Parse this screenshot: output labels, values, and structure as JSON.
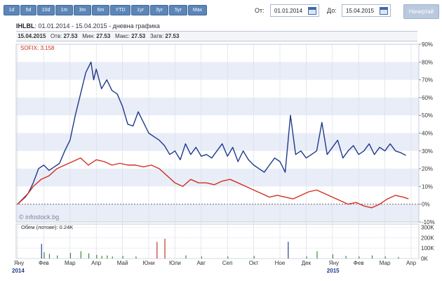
{
  "toolbar": {
    "ranges": [
      "1d",
      "5d",
      "10d",
      "1m",
      "3m",
      "6m",
      "YTD",
      "1yr",
      "3yr",
      "5yr",
      "Max"
    ],
    "from_label": "От:",
    "from_value": "01.01.2014",
    "to_label": "До:",
    "to_value": "15.04.2015",
    "draw_label": "Начертай"
  },
  "header": {
    "symbol": "IHLBL",
    "subtitle": ": 01.01.2014 - 15.04.2015 - дневна графика"
  },
  "infobar": {
    "date": "15.04.2015",
    "open_label": "Отв:",
    "open": "27.53",
    "min_label": "Мин:",
    "min": "27.53",
    "max_label": "Макс:",
    "max": "27.53",
    "close_label": "Затв:",
    "close": "27.53"
  },
  "chart_data": {
    "type": "line",
    "y_axis": {
      "min": -10,
      "max": 90,
      "step": 10,
      "unit": "%",
      "side": "right"
    },
    "y_tick_labels": [
      "90%",
      "80%",
      "70%",
      "60%",
      "50%",
      "40%",
      "30%",
      "20%",
      "10%",
      "0%",
      "-10%"
    ],
    "volume_axis": {
      "labels": [
        "300K",
        "200K",
        "100K",
        "0K"
      ],
      "values": [
        300,
        200,
        100,
        0
      ]
    },
    "volume_label": "Обем (лотове): 0.24K",
    "x_tick_labels": [
      "Яну",
      "Фев",
      "Мар",
      "Апр",
      "Май",
      "Юни",
      "Юли",
      "Авг",
      "Сеп",
      "Окт",
      "Ное",
      "Дек",
      "Яну",
      "Фев",
      "Мар",
      "Апр"
    ],
    "year_labels": [
      "2014",
      "2015"
    ],
    "legend": {
      "sofix_label": "SOFIX: 3.158"
    },
    "watermark": "© infostock.bg",
    "series": [
      {
        "name": "IHLBL",
        "color": "#1f3a8a",
        "points": [
          [
            0.0,
            0
          ],
          [
            0.2,
            3
          ],
          [
            0.4,
            6
          ],
          [
            0.6,
            12
          ],
          [
            0.8,
            20
          ],
          [
            1.0,
            22
          ],
          [
            1.2,
            19
          ],
          [
            1.4,
            21
          ],
          [
            1.6,
            23
          ],
          [
            1.8,
            30
          ],
          [
            2.0,
            36
          ],
          [
            2.2,
            50
          ],
          [
            2.4,
            62
          ],
          [
            2.6,
            74
          ],
          [
            2.8,
            80
          ],
          [
            2.9,
            70
          ],
          [
            3.0,
            76
          ],
          [
            3.2,
            65
          ],
          [
            3.4,
            70
          ],
          [
            3.6,
            64
          ],
          [
            3.8,
            62
          ],
          [
            4.0,
            55
          ],
          [
            4.2,
            45
          ],
          [
            4.4,
            44
          ],
          [
            4.6,
            52
          ],
          [
            4.8,
            46
          ],
          [
            5.0,
            40
          ],
          [
            5.2,
            38
          ],
          [
            5.4,
            36
          ],
          [
            5.6,
            33
          ],
          [
            5.8,
            28
          ],
          [
            6.0,
            30
          ],
          [
            6.2,
            25
          ],
          [
            6.4,
            34
          ],
          [
            6.6,
            28
          ],
          [
            6.8,
            32
          ],
          [
            7.0,
            27
          ],
          [
            7.2,
            28
          ],
          [
            7.4,
            26
          ],
          [
            7.6,
            30
          ],
          [
            7.8,
            34
          ],
          [
            8.0,
            27
          ],
          [
            8.2,
            32
          ],
          [
            8.4,
            24
          ],
          [
            8.6,
            30
          ],
          [
            8.8,
            25
          ],
          [
            9.0,
            22
          ],
          [
            9.2,
            20
          ],
          [
            9.4,
            18
          ],
          [
            9.6,
            22
          ],
          [
            9.8,
            26
          ],
          [
            10.0,
            24
          ],
          [
            10.2,
            18
          ],
          [
            10.4,
            50
          ],
          [
            10.6,
            28
          ],
          [
            10.8,
            30
          ],
          [
            11.0,
            26
          ],
          [
            11.2,
            28
          ],
          [
            11.4,
            30
          ],
          [
            11.6,
            46
          ],
          [
            11.8,
            28
          ],
          [
            12.0,
            32
          ],
          [
            12.2,
            36
          ],
          [
            12.4,
            26
          ],
          [
            12.6,
            30
          ],
          [
            12.8,
            33
          ],
          [
            13.0,
            28
          ],
          [
            13.2,
            30
          ],
          [
            13.4,
            34
          ],
          [
            13.6,
            28
          ],
          [
            13.8,
            32
          ],
          [
            14.0,
            30
          ],
          [
            14.2,
            34
          ],
          [
            14.4,
            30
          ],
          [
            14.6,
            29
          ],
          [
            14.8,
            27.5
          ]
        ]
      },
      {
        "name": "SOFIX",
        "color": "#d32f1e",
        "points": [
          [
            0.0,
            0
          ],
          [
            0.3,
            4
          ],
          [
            0.6,
            10
          ],
          [
            0.9,
            14
          ],
          [
            1.2,
            16
          ],
          [
            1.5,
            20
          ],
          [
            1.8,
            22
          ],
          [
            2.1,
            24
          ],
          [
            2.4,
            26
          ],
          [
            2.7,
            22
          ],
          [
            3.0,
            25
          ],
          [
            3.3,
            24
          ],
          [
            3.6,
            22
          ],
          [
            3.9,
            23
          ],
          [
            4.2,
            22
          ],
          [
            4.5,
            22
          ],
          [
            4.8,
            21
          ],
          [
            5.1,
            22
          ],
          [
            5.4,
            20
          ],
          [
            5.7,
            16
          ],
          [
            6.0,
            12
          ],
          [
            6.3,
            10
          ],
          [
            6.6,
            14
          ],
          [
            6.9,
            12
          ],
          [
            7.2,
            12
          ],
          [
            7.5,
            11
          ],
          [
            7.8,
            13
          ],
          [
            8.1,
            14
          ],
          [
            8.4,
            12
          ],
          [
            8.7,
            10
          ],
          [
            9.0,
            8
          ],
          [
            9.3,
            6
          ],
          [
            9.6,
            4
          ],
          [
            9.9,
            5
          ],
          [
            10.2,
            4
          ],
          [
            10.5,
            3
          ],
          [
            10.8,
            5
          ],
          [
            11.1,
            7
          ],
          [
            11.4,
            8
          ],
          [
            11.7,
            6
          ],
          [
            12.0,
            4
          ],
          [
            12.3,
            2
          ],
          [
            12.6,
            0
          ],
          [
            12.9,
            1
          ],
          [
            13.2,
            -1
          ],
          [
            13.5,
            -2
          ],
          [
            13.8,
            0
          ],
          [
            14.1,
            3
          ],
          [
            14.4,
            5
          ],
          [
            14.7,
            4
          ],
          [
            14.9,
            3
          ]
        ]
      }
    ],
    "volume_bars": [
      [
        0.9,
        140
      ],
      [
        1.0,
        60
      ],
      [
        1.2,
        45
      ],
      [
        1.5,
        30
      ],
      [
        2.0,
        55
      ],
      [
        2.4,
        70
      ],
      [
        2.7,
        50
      ],
      [
        3.0,
        35
      ],
      [
        3.2,
        25
      ],
      [
        3.4,
        30
      ],
      [
        3.6,
        20
      ],
      [
        4.0,
        25
      ],
      [
        4.5,
        20
      ],
      [
        5.3,
        160
      ],
      [
        5.6,
        190
      ],
      [
        6.4,
        30
      ],
      [
        7.0,
        20
      ],
      [
        8.0,
        20
      ],
      [
        9.0,
        25
      ],
      [
        10.3,
        160
      ],
      [
        11.0,
        20
      ],
      [
        11.4,
        70
      ],
      [
        12.0,
        40
      ],
      [
        12.5,
        25
      ],
      [
        13.0,
        20
      ],
      [
        13.5,
        30
      ],
      [
        14.0,
        20
      ],
      [
        14.5,
        15
      ]
    ],
    "grid": true
  }
}
